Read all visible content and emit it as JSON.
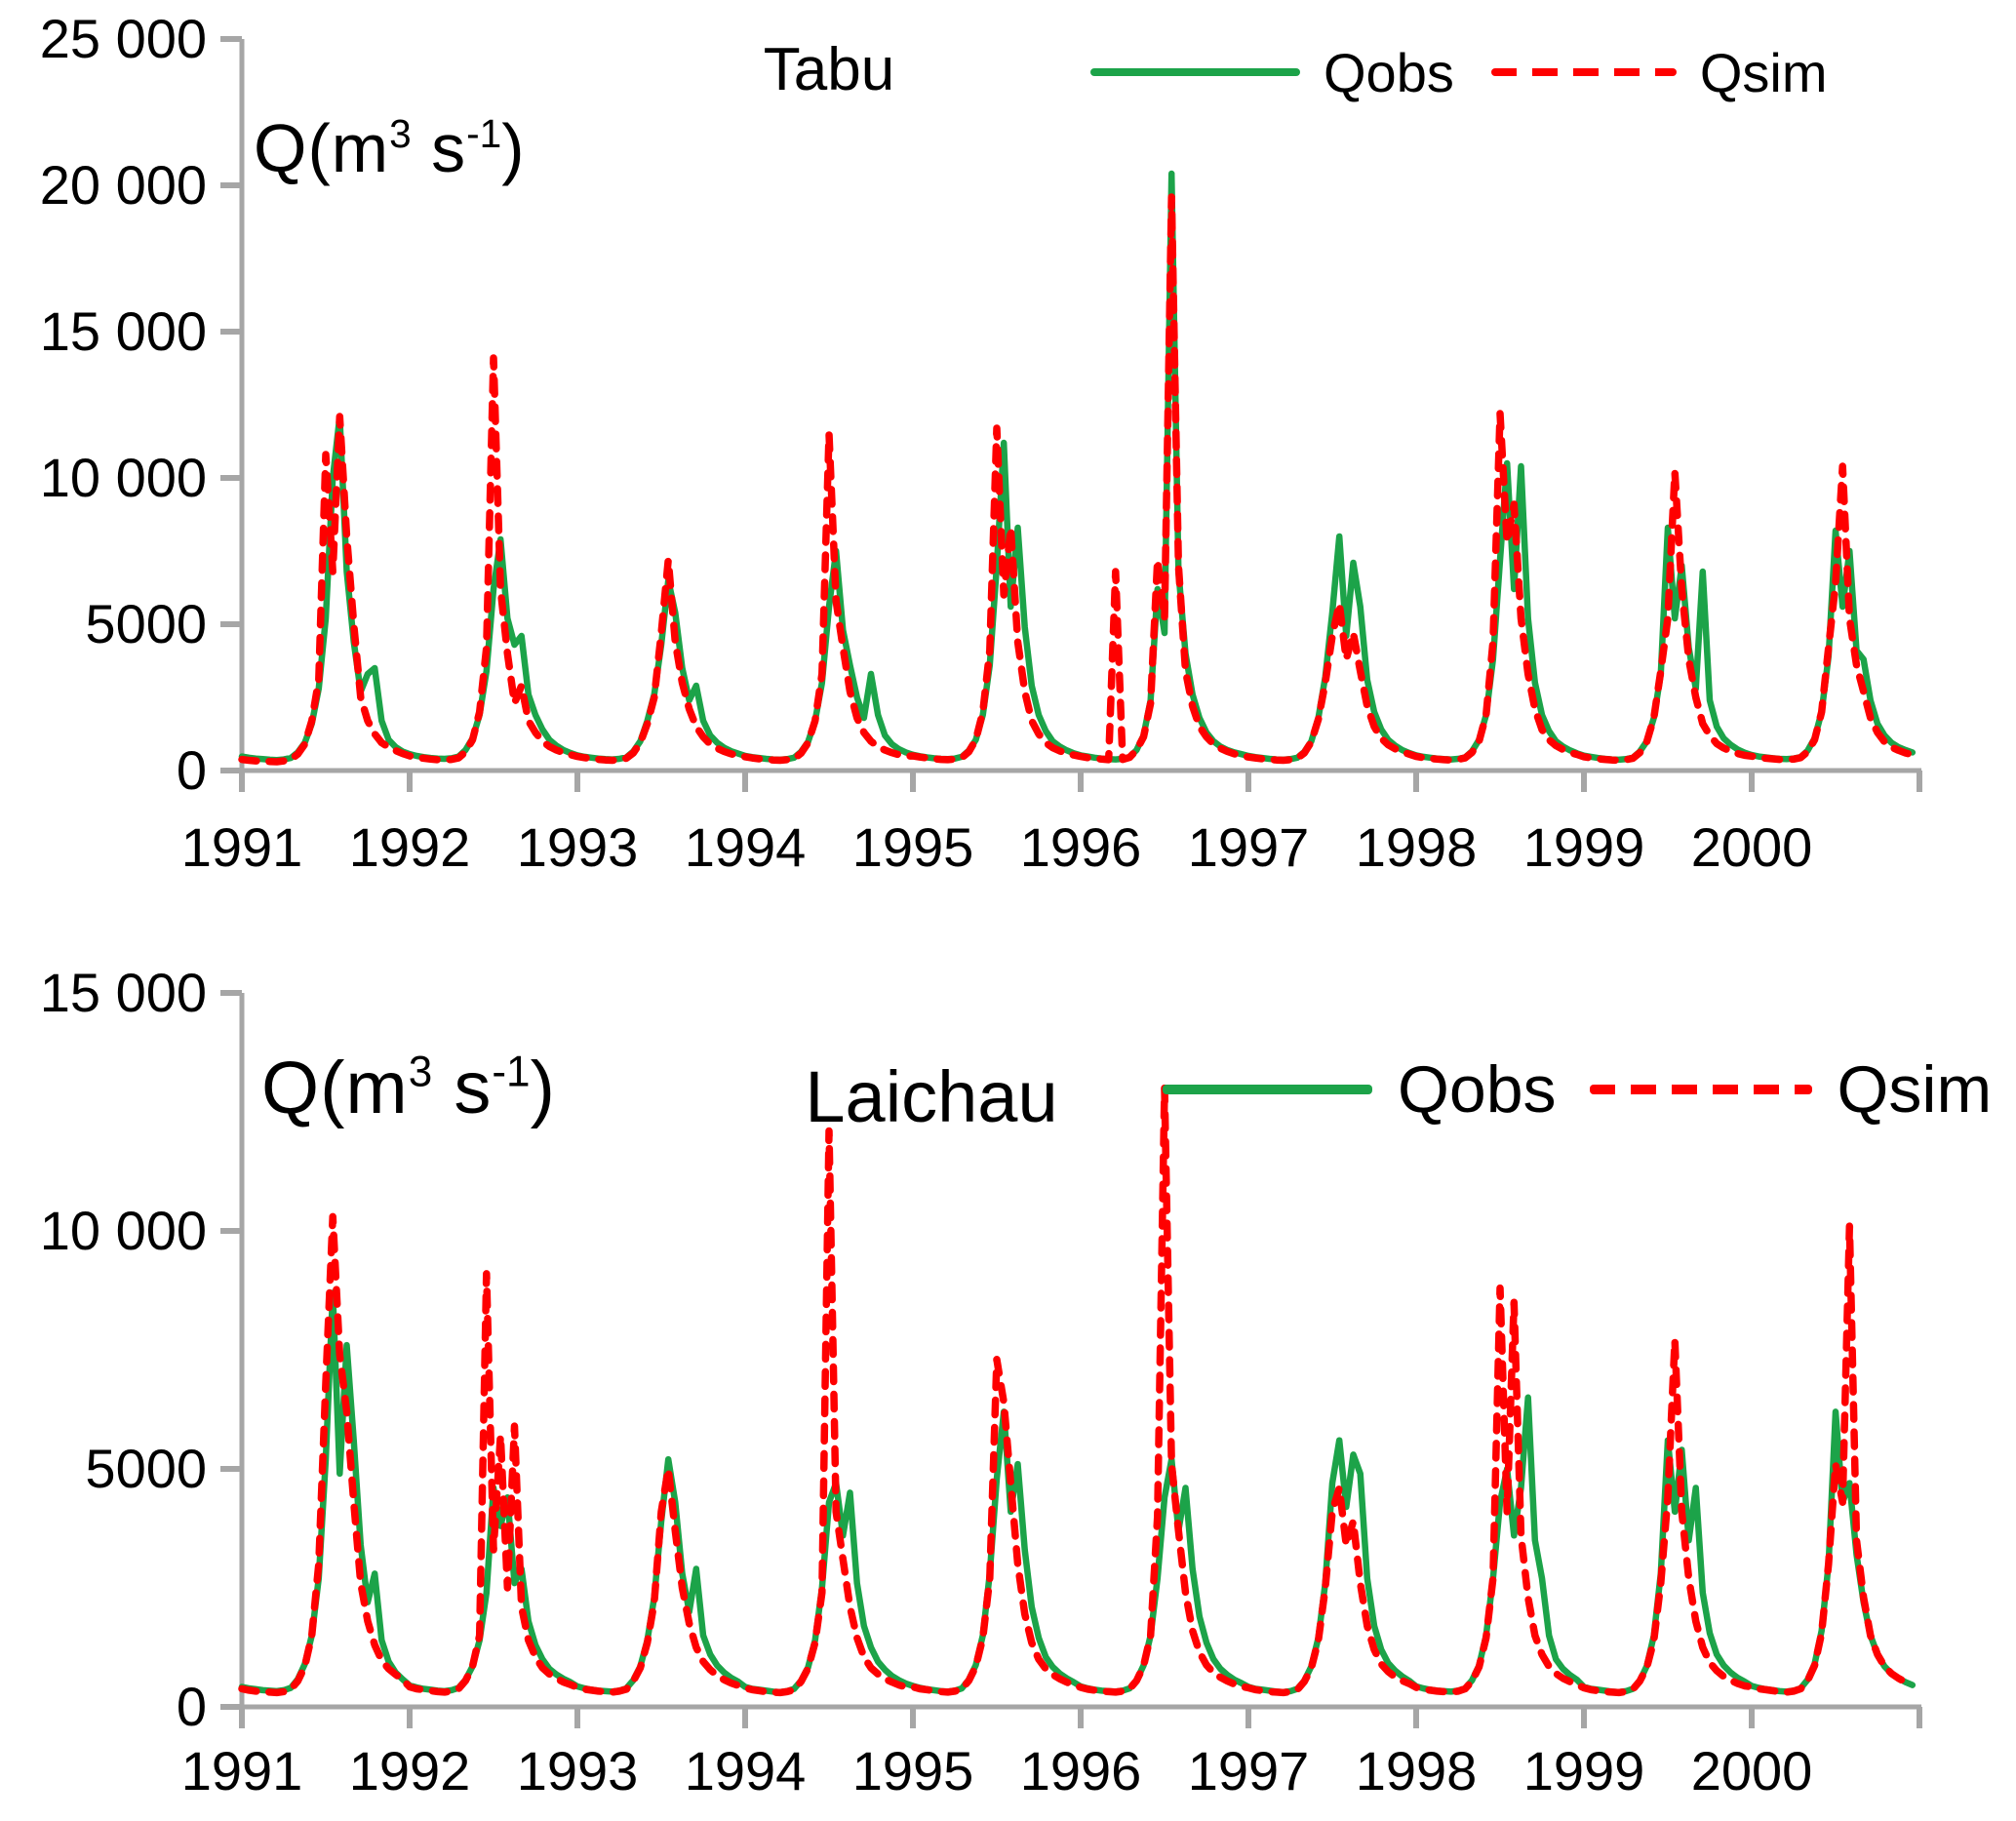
{
  "figure": {
    "background": "#ffffff",
    "description": "Two stacked hydrograph line charts comparing observed (Qobs) and simulated (Qsim) daily river discharge, 1991-2000, for stations Tabu and Laichau"
  },
  "colors": {
    "qobs_green": "#1CA349",
    "qsim_red": "#FE0000",
    "axis_gray": "#A6A6A6",
    "text_black": "#000000"
  },
  "chart_data": [
    {
      "type": "line",
      "station": "Tabu",
      "title": "Tabu",
      "ylabel": "Q(m3 s-1)",
      "ylabel_parts": {
        "p1": "Q(m",
        "sup1": "3",
        "p2": " s",
        "sup2": "-1",
        "p3": ")"
      },
      "ylim": [
        0,
        25000
      ],
      "ytick_values": [
        25000,
        20000,
        15000,
        10000,
        5000,
        0
      ],
      "ytick_labels": [
        "25 000",
        "20 000",
        "15 000",
        "10 000",
        "5000",
        "0"
      ],
      "x_range_years": [
        1991,
        2001
      ],
      "xtick_labels": [
        "1991",
        "1992",
        "1993",
        "1994",
        "1995",
        "1996",
        "1997",
        "1998",
        "1999",
        "2000"
      ],
      "points_per_year": 24,
      "x_start_year": 1991,
      "grid": false,
      "legend_position": "top-right",
      "legend": {
        "qobs_label": "Qobs",
        "qsim_label": "Qsim"
      },
      "series": [
        {
          "name": "Qobs",
          "color": "#1CA349",
          "style": "solid",
          "values": [
            480,
            440,
            410,
            390,
            370,
            360,
            380,
            430,
            620,
            950,
            1600,
            2800,
            5200,
            10000,
            12100,
            6800,
            4400,
            2700,
            3300,
            3500,
            1700,
            1050,
            800,
            650,
            560,
            500,
            460,
            430,
            410,
            400,
            420,
            480,
            700,
            1100,
            1900,
            3400,
            6200,
            7900,
            5200,
            4300,
            4600,
            2600,
            1900,
            1400,
            1050,
            850,
            700,
            600,
            520,
            470,
            440,
            410,
            390,
            380,
            400,
            450,
            650,
            1000,
            1700,
            2600,
            4300,
            6500,
            5400,
            3500,
            2400,
            2900,
            1700,
            1200,
            950,
            780,
            660,
            580,
            500,
            460,
            430,
            400,
            380,
            370,
            390,
            440,
            640,
            980,
            1700,
            3000,
            5600,
            7500,
            4800,
            3600,
            2500,
            1800,
            3300,
            1900,
            1200,
            900,
            730,
            620,
            540,
            490,
            450,
            420,
            400,
            390,
            410,
            470,
            680,
            1050,
            1900,
            3600,
            7000,
            11200,
            5600,
            8300,
            4900,
            2900,
            1900,
            1350,
            1000,
            820,
            690,
            590,
            520,
            480,
            440,
            410,
            390,
            380,
            400,
            460,
            700,
            1200,
            2400,
            6200,
            4700,
            20400,
            6800,
            4000,
            2600,
            1800,
            1300,
            1000,
            820,
            700,
            620,
            560,
            500,
            460,
            430,
            400,
            380,
            370,
            390,
            440,
            640,
            1000,
            1800,
            3200,
            5400,
            8000,
            4600,
            7100,
            5600,
            3100,
            2000,
            1400,
            1050,
            850,
            700,
            600,
            520,
            470,
            440,
            410,
            390,
            380,
            400,
            450,
            660,
            1050,
            1900,
            3800,
            7200,
            10500,
            6200,
            10400,
            5200,
            3000,
            1900,
            1350,
            1000,
            820,
            690,
            590,
            510,
            470,
            430,
            400,
            380,
            370,
            390,
            440,
            650,
            1000,
            1800,
            3300,
            8300,
            5200,
            7000,
            4200,
            2800,
            6800,
            2400,
            1500,
            1100,
            880,
            720,
            610,
            530,
            480,
            450,
            420,
            400,
            390,
            410,
            460,
            680,
            1100,
            2000,
            3900,
            8200,
            5600,
            7500,
            4100,
            3800,
            2400,
            1600,
            1200,
            950,
            800,
            700,
            620
          ]
        },
        {
          "name": "Qsim",
          "color": "#FE0000",
          "style": "dashed",
          "values": [
            380,
            350,
            330,
            320,
            310,
            300,
            330,
            380,
            560,
            900,
            1700,
            3100,
            10800,
            6800,
            12100,
            8000,
            5000,
            2500,
            1700,
            1250,
            950,
            800,
            680,
            580,
            500,
            450,
            420,
            390,
            370,
            360,
            380,
            430,
            640,
            1050,
            2000,
            4200,
            14100,
            6200,
            4000,
            2300,
            2900,
            1700,
            1300,
            1000,
            820,
            700,
            610,
            540,
            480,
            440,
            410,
            380,
            360,
            350,
            370,
            420,
            600,
            950,
            1600,
            2500,
            4700,
            7200,
            4400,
            3000,
            2100,
            1500,
            1150,
            900,
            760,
            650,
            570,
            510,
            470,
            430,
            400,
            380,
            360,
            350,
            370,
            410,
            590,
            950,
            1700,
            3300,
            11500,
            5800,
            4200,
            2700,
            1800,
            1300,
            1000,
            820,
            700,
            610,
            540,
            490,
            500,
            460,
            430,
            400,
            380,
            370,
            390,
            440,
            640,
            1050,
            2000,
            4100,
            11700,
            6000,
            8300,
            4400,
            2700,
            1700,
            1250,
            950,
            780,
            670,
            590,
            530,
            480,
            440,
            410,
            390,
            370,
            6800,
            380,
            450,
            700,
            1150,
            2300,
            7200,
            5200,
            19600,
            7000,
            3400,
            2200,
            1500,
            1150,
            900,
            760,
            650,
            570,
            510,
            460,
            430,
            400,
            380,
            360,
            350,
            370,
            420,
            600,
            980,
            1750,
            3000,
            4600,
            5700,
            3800,
            4700,
            3400,
            2200,
            1500,
            1100,
            880,
            740,
            640,
            560,
            480,
            440,
            410,
            390,
            370,
            360,
            380,
            430,
            620,
            1000,
            1900,
            4400,
            12200,
            7800,
            9100,
            5200,
            3300,
            2100,
            1400,
            1050,
            850,
            720,
            620,
            550,
            470,
            430,
            400,
            380,
            360,
            350,
            370,
            420,
            610,
            990,
            1800,
            3400,
            5200,
            10200,
            6200,
            3800,
            2500,
            1600,
            1200,
            920,
            770,
            660,
            580,
            520,
            490,
            450,
            420,
            400,
            380,
            370,
            390,
            440,
            640,
            1050,
            2000,
            4200,
            6400,
            10400,
            5200,
            3600,
            2700,
            1800,
            1300,
            980,
            800,
            690,
            600,
            540
          ]
        }
      ]
    },
    {
      "type": "line",
      "station": "Laichau",
      "title": "Laichau",
      "ylabel": "Q(m3 s-1)",
      "ylabel_parts": {
        "p1": "Q(m",
        "sup1": "3",
        "p2": " s",
        "sup2": "-1",
        "p3": ")"
      },
      "ylim": [
        0,
        15000
      ],
      "ytick_values": [
        15000,
        10000,
        5000,
        0
      ],
      "ytick_labels": [
        "15 000",
        "10 000",
        "5000",
        "0"
      ],
      "x_range_years": [
        1991,
        2001
      ],
      "xtick_labels": [
        "1991",
        "1992",
        "1993",
        "1994",
        "1995",
        "1996",
        "1997",
        "1998",
        "1999",
        "2000"
      ],
      "points_per_year": 24,
      "x_start_year": 1991,
      "grid": false,
      "legend_position": "top-right",
      "legend": {
        "qobs_label": "Qobs",
        "qsim_label": "Qsim"
      },
      "series": [
        {
          "name": "Qobs",
          "color": "#1CA349",
          "style": "solid",
          "values": [
            420,
            390,
            370,
            350,
            340,
            330,
            350,
            400,
            580,
            900,
            1500,
            2700,
            5200,
            8700,
            4900,
            7600,
            5600,
            3400,
            2200,
            2800,
            1400,
            950,
            720,
            580,
            450,
            410,
            380,
            360,
            340,
            330,
            350,
            400,
            570,
            850,
            1400,
            2400,
            4600,
            3800,
            4400,
            2600,
            2900,
            1800,
            1300,
            1000,
            800,
            680,
            590,
            520,
            430,
            390,
            360,
            340,
            330,
            320,
            340,
            390,
            560,
            850,
            1400,
            2300,
            3900,
            5200,
            4300,
            2800,
            2000,
            2900,
            1500,
            1100,
            870,
            720,
            610,
            530,
            420,
            380,
            360,
            340,
            320,
            310,
            330,
            380,
            550,
            830,
            1400,
            2500,
            4300,
            4700,
            3600,
            4500,
            2600,
            1700,
            1250,
            950,
            780,
            650,
            560,
            490,
            440,
            400,
            370,
            350,
            330,
            320,
            340,
            390,
            570,
            880,
            1500,
            2800,
            4800,
            6200,
            4100,
            5100,
            3300,
            2100,
            1450,
            1050,
            840,
            700,
            600,
            520,
            430,
            390,
            360,
            340,
            330,
            320,
            340,
            390,
            560,
            870,
            1500,
            2700,
            4400,
            5200,
            3700,
            4600,
            2900,
            1900,
            1350,
            1000,
            800,
            670,
            570,
            500,
            420,
            380,
            360,
            340,
            320,
            310,
            330,
            380,
            550,
            850,
            1450,
            2600,
            4700,
            5600,
            4200,
            5300,
            4900,
            2700,
            1700,
            1200,
            920,
            760,
            640,
            550,
            430,
            390,
            360,
            340,
            330,
            320,
            340,
            390,
            560,
            870,
            1500,
            2700,
            4300,
            5000,
            3600,
            4600,
            6500,
            3500,
            2700,
            1500,
            1000,
            800,
            670,
            570,
            420,
            380,
            360,
            340,
            320,
            310,
            330,
            380,
            550,
            860,
            1500,
            2800,
            5600,
            4100,
            5400,
            3500,
            4600,
            2400,
            1550,
            1100,
            870,
            720,
            610,
            530,
            440,
            400,
            370,
            350,
            330,
            320,
            340,
            390,
            570,
            900,
            1600,
            3000,
            6200,
            4300,
            4700,
            3200,
            2200,
            1500,
            1100,
            850,
            700,
            600,
            520,
            460
          ]
        },
        {
          "name": "Qsim",
          "color": "#FE0000",
          "style": "dashed",
          "values": [
            380,
            350,
            330,
            320,
            310,
            300,
            320,
            370,
            540,
            850,
            1500,
            3000,
            6800,
            10300,
            7400,
            6200,
            4300,
            2600,
            1800,
            1300,
            980,
            800,
            680,
            570,
            420,
            380,
            360,
            340,
            320,
            310,
            330,
            380,
            550,
            850,
            1500,
            9100,
            3300,
            5700,
            2500,
            5900,
            2100,
            1400,
            1050,
            820,
            690,
            600,
            520,
            470,
            410,
            370,
            350,
            330,
            320,
            310,
            330,
            370,
            540,
            820,
            1350,
            2200,
            4100,
            5000,
            3700,
            2500,
            1750,
            1250,
            950,
            780,
            660,
            570,
            500,
            450,
            400,
            360,
            340,
            320,
            310,
            300,
            320,
            360,
            530,
            810,
            1350,
            2400,
            12100,
            4100,
            3100,
            2100,
            1450,
            1050,
            820,
            690,
            590,
            520,
            460,
            420,
            420,
            380,
            360,
            340,
            320,
            310,
            330,
            380,
            550,
            850,
            1450,
            2700,
            7300,
            6400,
            4700,
            3000,
            1950,
            1350,
            1000,
            800,
            680,
            590,
            520,
            460,
            410,
            370,
            350,
            330,
            320,
            310,
            330,
            380,
            550,
            860,
            1500,
            4000,
            13000,
            5100,
            3700,
            2400,
            1600,
            1150,
            880,
            720,
            620,
            540,
            480,
            430,
            400,
            360,
            340,
            320,
            310,
            300,
            320,
            360,
            530,
            820,
            1400,
            2500,
            4100,
            4600,
            3400,
            3900,
            2600,
            1700,
            1200,
            900,
            740,
            630,
            550,
            490,
            410,
            370,
            350,
            330,
            320,
            310,
            330,
            380,
            540,
            840,
            1450,
            2700,
            8800,
            4100,
            8500,
            3600,
            2300,
            1500,
            1100,
            850,
            700,
            600,
            530,
            470,
            400,
            360,
            340,
            320,
            310,
            300,
            320,
            370,
            540,
            830,
            1400,
            2600,
            4400,
            7700,
            4100,
            2700,
            1800,
            1250,
            930,
            760,
            640,
            560,
            490,
            440,
            420,
            380,
            360,
            340,
            320,
            310,
            330,
            380,
            550,
            870,
            1550,
            3000,
            5100,
            4300,
            10100,
            3500,
            2300,
            1500,
            1100,
            850,
            700,
            600,
            520,
            460
          ]
        }
      ]
    }
  ]
}
